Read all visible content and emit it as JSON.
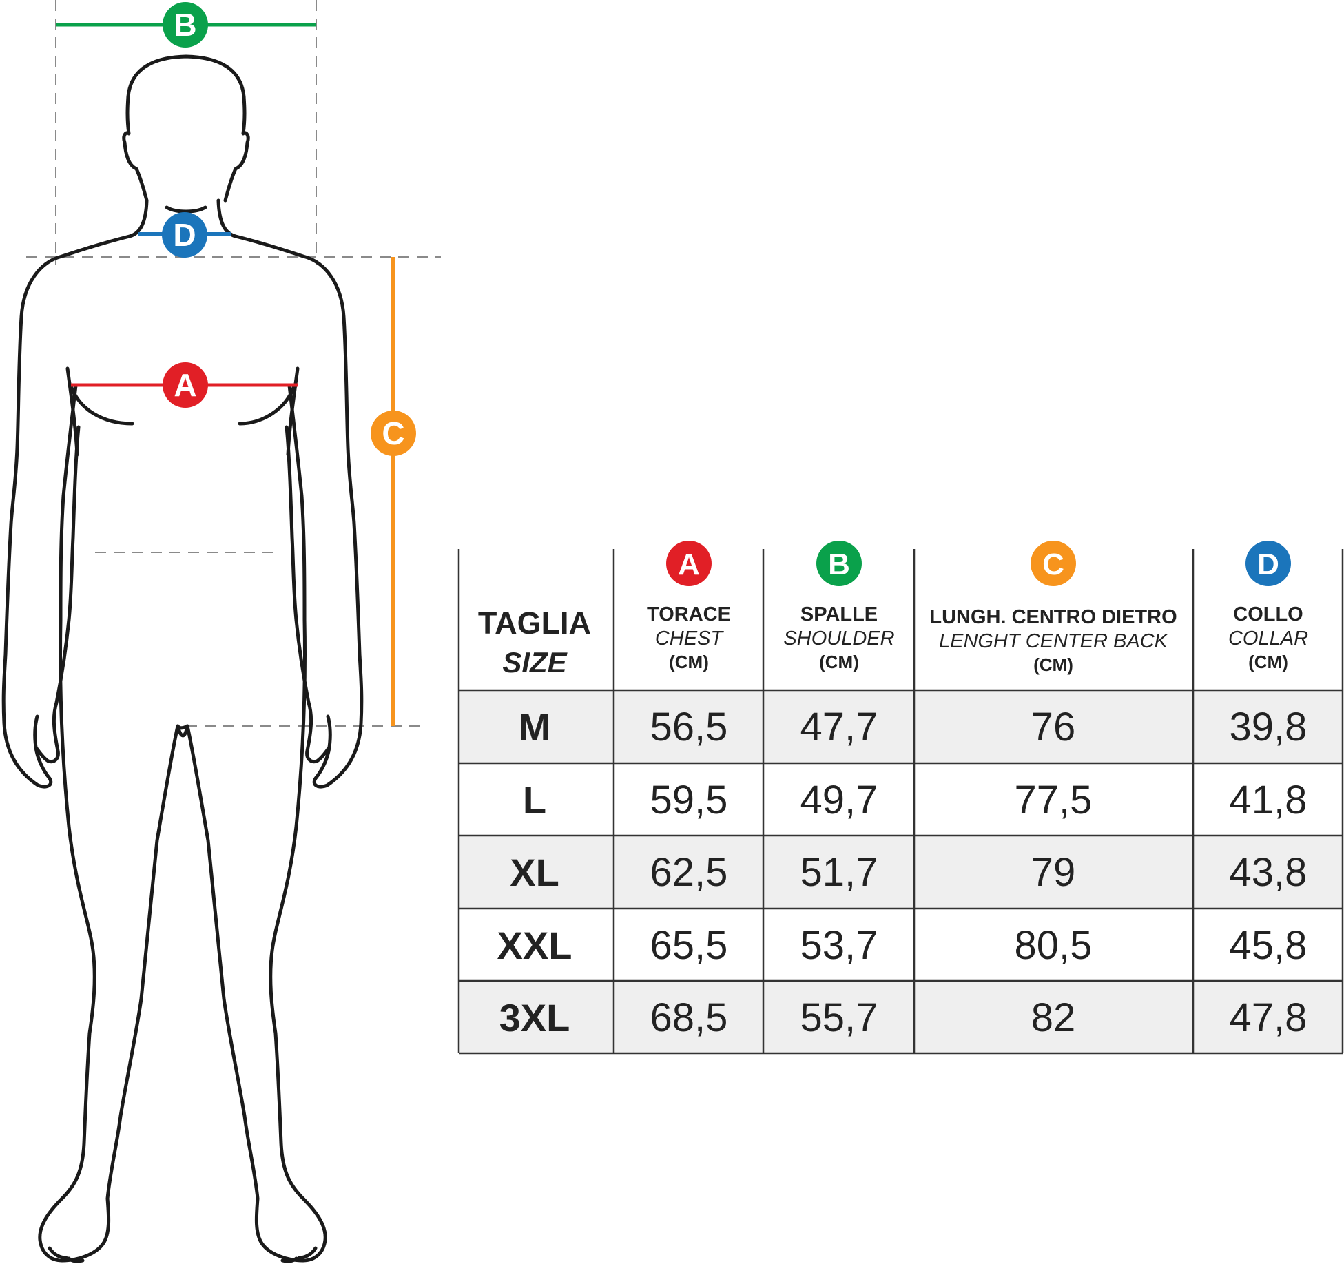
{
  "colors": {
    "chest": "#e11f26",
    "shoulder": "#0aa14b",
    "length": "#f7941d",
    "collar": "#1b75bb",
    "outline": "#1a1a1a",
    "guide": "#8a8a8a",
    "row_shade": "#efefef"
  },
  "markers": {
    "A": "A",
    "B": "B",
    "C": "C",
    "D": "D"
  },
  "table": {
    "size_header": {
      "it": "TAGLIA",
      "en": "SIZE"
    },
    "columns": [
      {
        "badge": "A",
        "it": "TORACE",
        "en": "CHEST",
        "unit": "(CM)"
      },
      {
        "badge": "B",
        "it": "SPALLE",
        "en": "SHOULDER",
        "unit": "(CM)"
      },
      {
        "badge": "C",
        "it": "LUNGH. CENTRO DIETRO",
        "en": "LENGHT CENTER BACK",
        "unit": "(CM)"
      },
      {
        "badge": "D",
        "it": "COLLO",
        "en": "COLLAR",
        "unit": "(CM)"
      }
    ],
    "rows": [
      {
        "size": "M",
        "values": [
          "56,5",
          "47,7",
          "76",
          "39,8"
        ]
      },
      {
        "size": "L",
        "values": [
          "59,5",
          "49,7",
          "77,5",
          "41,8"
        ]
      },
      {
        "size": "XL",
        "values": [
          "62,5",
          "51,7",
          "79",
          "43,8"
        ]
      },
      {
        "size": "XXL",
        "values": [
          "65,5",
          "53,7",
          "80,5",
          "45,8"
        ]
      },
      {
        "size": "3XL",
        "values": [
          "68,5",
          "55,7",
          "82",
          "47,8"
        ]
      }
    ]
  }
}
